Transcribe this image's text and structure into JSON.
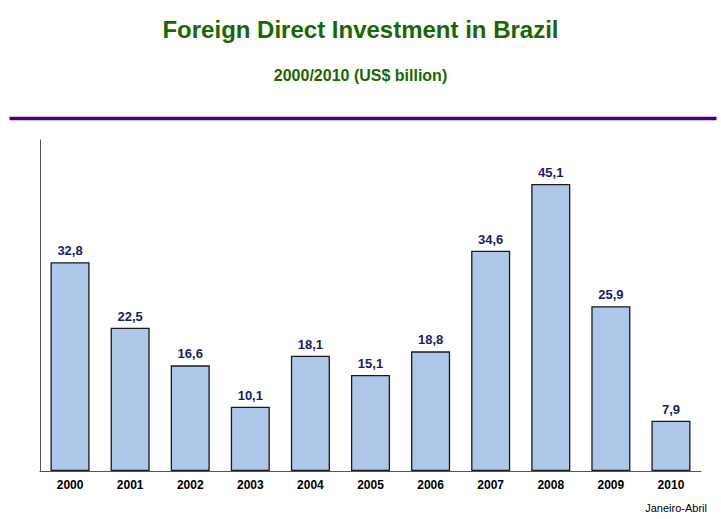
{
  "chart_data": {
    "type": "bar",
    "title": "Foreign Direct Investment in Brazil",
    "subtitle": "2000/2010 (US$ billion)",
    "categories": [
      "2000",
      "2001",
      "2002",
      "2003",
      "2004",
      "2005",
      "2006",
      "2007",
      "2008",
      "2009",
      "2010"
    ],
    "values": [
      32.8,
      22.5,
      16.6,
      10.1,
      18.1,
      15.1,
      18.8,
      34.6,
      45.1,
      25.9,
      7.9
    ],
    "value_labels": [
      "32,8",
      "22,5",
      "16,6",
      "10,1",
      "18,1",
      "15,1",
      "18,8",
      "34,6",
      "45,1",
      "25,9",
      "7,9"
    ],
    "color": "#aec6e8",
    "ylim": [
      0,
      52
    ],
    "grid": false,
    "data_labels": true,
    "tick_labels": "x",
    "annotations": [
      "Janeiro-Abril"
    ]
  }
}
